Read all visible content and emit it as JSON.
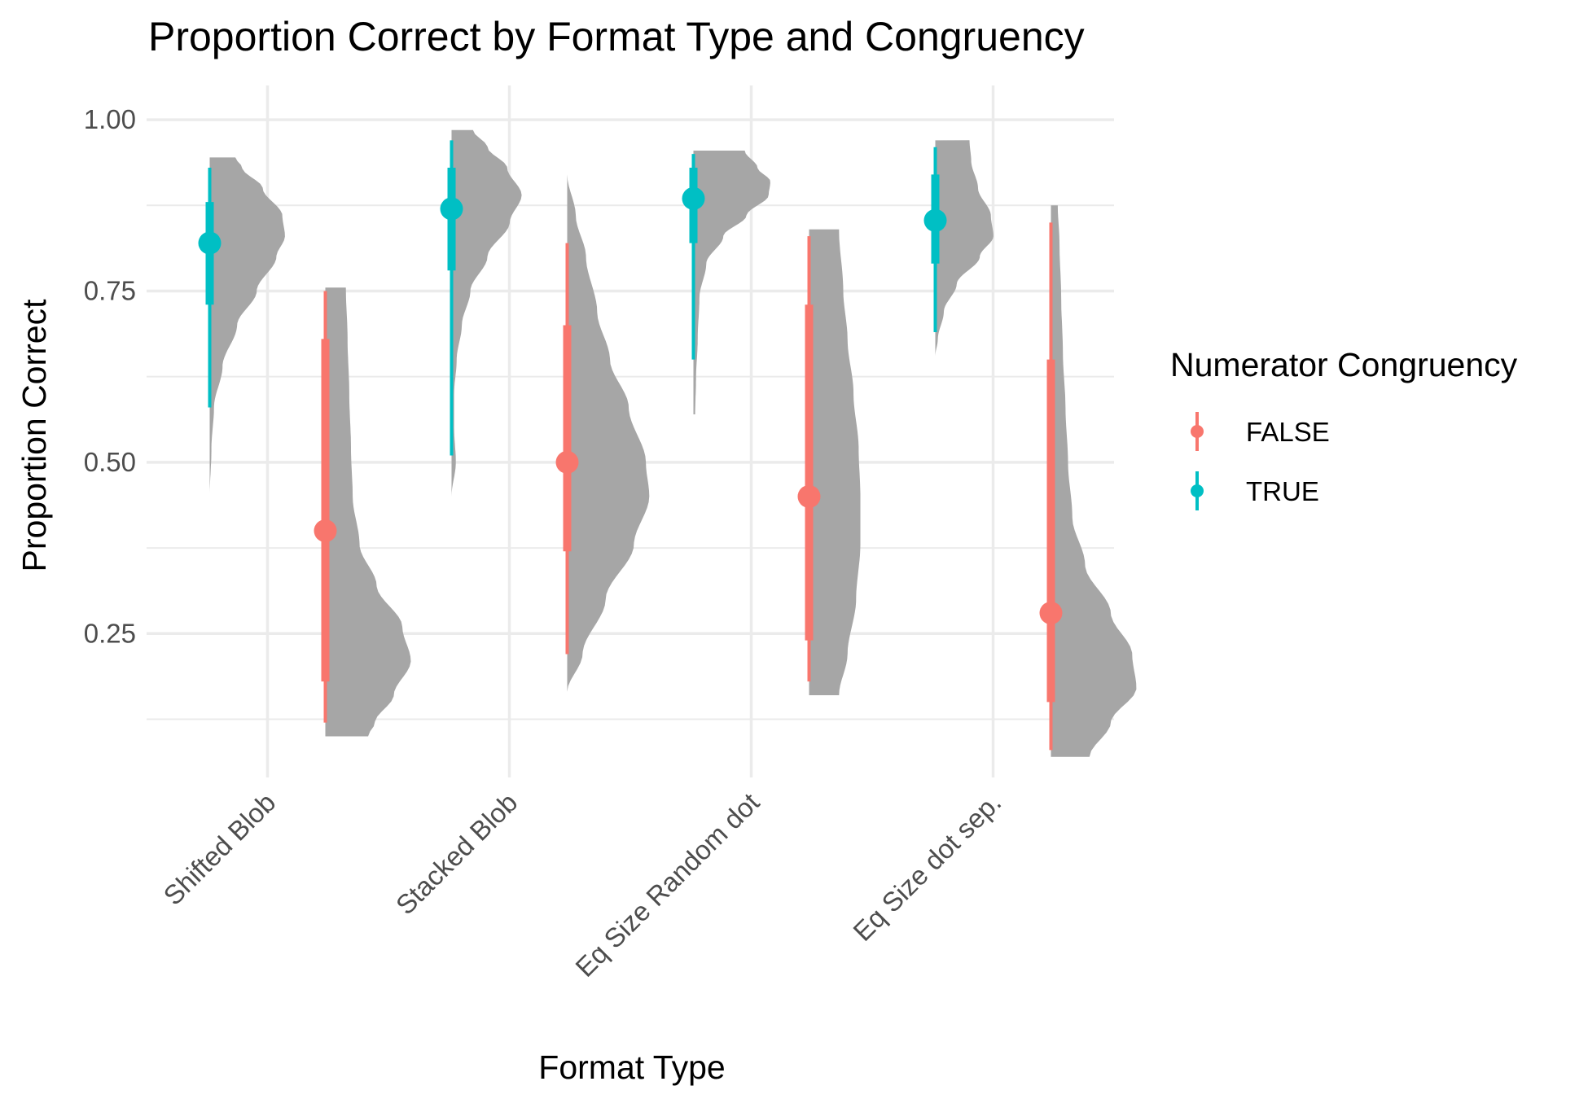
{
  "chart_data": {
    "type": "halfeye",
    "title": "Proportion Correct by Format Type and Congruency",
    "xlabel": "Format Type",
    "ylabel": "Proportion Correct",
    "categories": [
      "Shifted Blob",
      "Stacked Blob",
      "Eq Size Random dot",
      "Eq Size dot sep."
    ],
    "y_ticks": [
      "0.25",
      "0.50",
      "0.75",
      "1.00"
    ],
    "y_tick_values": [
      0.25,
      0.5,
      0.75,
      1.0
    ],
    "ylim": [
      0.04,
      1.05
    ],
    "grid": true,
    "legend": {
      "title": "Numerator Congruency",
      "position": "right",
      "items": [
        {
          "label": "FALSE",
          "color": "#F8766D"
        },
        {
          "label": "TRUE",
          "color": "#00BFC4"
        }
      ]
    },
    "density_color": "#a6a6a6",
    "series": [
      {
        "name": "FALSE",
        "color": "#F8766D",
        "points": [
          {
            "category": "Shifted Blob",
            "median": 0.4,
            "inner": [
              0.18,
              0.68
            ],
            "outer": [
              0.12,
              0.75
            ],
            "density": {
              "min": 0.1,
              "max": 0.755,
              "knots": [
                [
                  0.1,
                  0.5
                ],
                [
                  0.12,
                  0.58
                ],
                [
                  0.16,
                  0.8
                ],
                [
                  0.21,
                  1.0
                ],
                [
                  0.26,
                  0.9
                ],
                [
                  0.32,
                  0.6
                ],
                [
                  0.38,
                  0.4
                ],
                [
                  0.45,
                  0.32
                ],
                [
                  0.52,
                  0.3
                ],
                [
                  0.6,
                  0.28
                ],
                [
                  0.68,
                  0.26
                ],
                [
                  0.755,
                  0.24
                ]
              ]
            }
          },
          {
            "category": "Stacked Blob",
            "median": 0.5,
            "inner": [
              0.37,
              0.7
            ],
            "outer": [
              0.22,
              0.82
            ],
            "density": {
              "min": 0.165,
              "max": 0.92,
              "knots": [
                [
                  0.165,
                  0.0
                ],
                [
                  0.22,
                  0.18
                ],
                [
                  0.3,
                  0.45
                ],
                [
                  0.38,
                  0.78
                ],
                [
                  0.45,
                  0.96
                ],
                [
                  0.5,
                  0.92
                ],
                [
                  0.58,
                  0.72
                ],
                [
                  0.65,
                  0.5
                ],
                [
                  0.72,
                  0.35
                ],
                [
                  0.8,
                  0.22
                ],
                [
                  0.86,
                  0.1
                ],
                [
                  0.92,
                  0.0
                ]
              ]
            }
          },
          {
            "category": "Eq Size Random dot",
            "median": 0.45,
            "inner": [
              0.24,
              0.73
            ],
            "outer": [
              0.18,
              0.83
            ],
            "density": {
              "min": 0.16,
              "max": 0.84,
              "knots": [
                [
                  0.16,
                  0.35
                ],
                [
                  0.22,
                  0.45
                ],
                [
                  0.3,
                  0.55
                ],
                [
                  0.38,
                  0.6
                ],
                [
                  0.45,
                  0.6
                ],
                [
                  0.52,
                  0.58
                ],
                [
                  0.6,
                  0.52
                ],
                [
                  0.68,
                  0.45
                ],
                [
                  0.75,
                  0.4
                ],
                [
                  0.84,
                  0.35
                ]
              ]
            }
          },
          {
            "category": "Eq Size dot sep.",
            "median": 0.28,
            "inner": [
              0.15,
              0.65
            ],
            "outer": [
              0.08,
              0.85
            ],
            "density": {
              "min": 0.07,
              "max": 0.875,
              "knots": [
                [
                  0.07,
                  0.45
                ],
                [
                  0.12,
                  0.7
                ],
                [
                  0.17,
                  1.0
                ],
                [
                  0.22,
                  0.95
                ],
                [
                  0.28,
                  0.7
                ],
                [
                  0.35,
                  0.4
                ],
                [
                  0.42,
                  0.25
                ],
                [
                  0.5,
                  0.2
                ],
                [
                  0.58,
                  0.17
                ],
                [
                  0.66,
                  0.14
                ],
                [
                  0.74,
                  0.12
                ],
                [
                  0.82,
                  0.1
                ],
                [
                  0.875,
                  0.08
                ]
              ]
            }
          }
        ]
      },
      {
        "name": "TRUE",
        "color": "#00BFC4",
        "points": [
          {
            "category": "Shifted Blob",
            "median": 0.82,
            "inner": [
              0.73,
              0.88
            ],
            "outer": [
              0.58,
              0.93
            ],
            "density": {
              "min": 0.45,
              "max": 0.945,
              "knots": [
                [
                  0.45,
                  0.0
                ],
                [
                  0.52,
                  0.02
                ],
                [
                  0.58,
                  0.05
                ],
                [
                  0.64,
                  0.15
                ],
                [
                  0.7,
                  0.32
                ],
                [
                  0.75,
                  0.55
                ],
                [
                  0.8,
                  0.78
                ],
                [
                  0.83,
                  0.88
                ],
                [
                  0.86,
                  0.85
                ],
                [
                  0.9,
                  0.62
                ],
                [
                  0.93,
                  0.38
                ],
                [
                  0.945,
                  0.3
                ]
              ]
            }
          },
          {
            "category": "Stacked Blob",
            "median": 0.87,
            "inner": [
              0.78,
              0.93
            ],
            "outer": [
              0.51,
              0.97
            ],
            "density": {
              "min": 0.45,
              "max": 0.985,
              "knots": [
                [
                  0.45,
                  0.0
                ],
                [
                  0.5,
                  0.05
                ],
                [
                  0.55,
                  0.03
                ],
                [
                  0.6,
                  0.03
                ],
                [
                  0.65,
                  0.06
                ],
                [
                  0.7,
                  0.12
                ],
                [
                  0.75,
                  0.22
                ],
                [
                  0.8,
                  0.42
                ],
                [
                  0.85,
                  0.68
                ],
                [
                  0.89,
                  0.82
                ],
                [
                  0.93,
                  0.65
                ],
                [
                  0.96,
                  0.42
                ],
                [
                  0.985,
                  0.25
                ]
              ]
            }
          },
          {
            "category": "Eq Size Random dot",
            "median": 0.885,
            "inner": [
              0.82,
              0.93
            ],
            "outer": [
              0.65,
              0.95
            ],
            "density": {
              "min": 0.57,
              "max": 0.955,
              "knots": [
                [
                  0.57,
                  0.02
                ],
                [
                  0.62,
                  0.03
                ],
                [
                  0.68,
                  0.05
                ],
                [
                  0.74,
                  0.07
                ],
                [
                  0.79,
                  0.15
                ],
                [
                  0.83,
                  0.35
                ],
                [
                  0.86,
                  0.62
                ],
                [
                  0.89,
                  0.88
                ],
                [
                  0.91,
                  0.9
                ],
                [
                  0.93,
                  0.75
                ],
                [
                  0.955,
                  0.6
                ]
              ]
            }
          },
          {
            "category": "Eq Size dot sep.",
            "median": 0.853,
            "inner": [
              0.79,
              0.92
            ],
            "outer": [
              0.69,
              0.96
            ],
            "density": {
              "min": 0.655,
              "max": 0.97,
              "knots": [
                [
                  0.655,
                  0.0
                ],
                [
                  0.68,
                  0.03
                ],
                [
                  0.72,
                  0.1
                ],
                [
                  0.76,
                  0.25
                ],
                [
                  0.8,
                  0.52
                ],
                [
                  0.83,
                  0.68
                ],
                [
                  0.86,
                  0.65
                ],
                [
                  0.9,
                  0.5
                ],
                [
                  0.94,
                  0.42
                ],
                [
                  0.97,
                  0.4
                ]
              ]
            }
          }
        ]
      }
    ]
  }
}
